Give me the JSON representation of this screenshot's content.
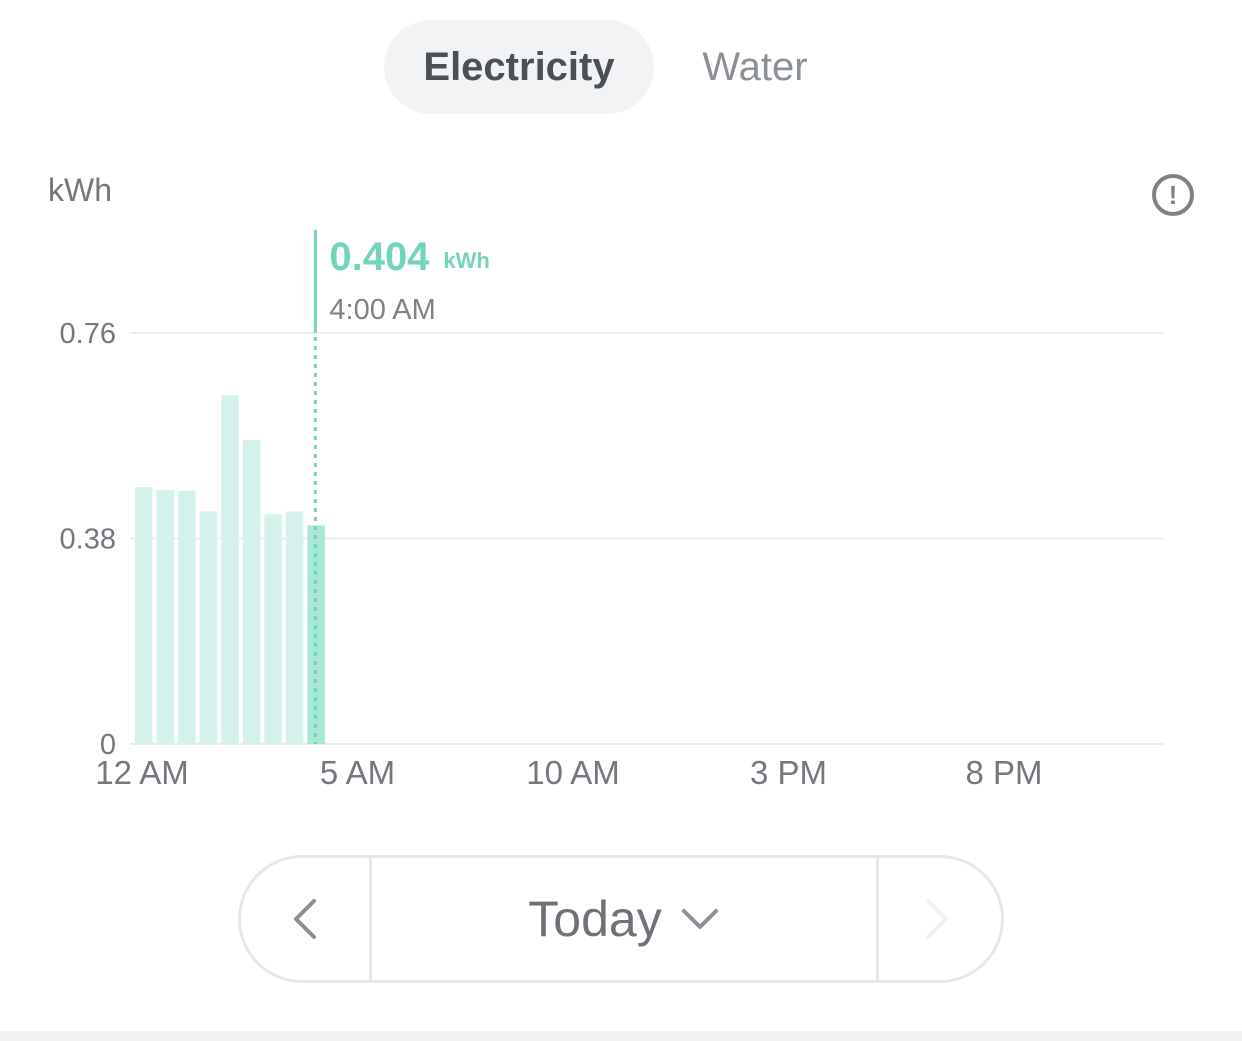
{
  "tabs": [
    {
      "label": "Electricity",
      "active": true
    },
    {
      "label": "Water",
      "active": false
    }
  ],
  "unit_label": "kWh",
  "info_icon": "exclamation-circle-icon",
  "tooltip": {
    "value": "0.404",
    "unit": "kWh",
    "time": "4:00 AM"
  },
  "chart_data": {
    "type": "bar",
    "title": "",
    "xlabel": "",
    "ylabel": "kWh",
    "ylim": [
      0,
      0.76
    ],
    "y_ticks": [
      0,
      0.38,
      0.76
    ],
    "y_tick_labels": [
      "0",
      "0.38",
      "0.76"
    ],
    "x_range_hours": [
      0,
      24
    ],
    "x_tick_hours": [
      0,
      5,
      10,
      15,
      20
    ],
    "x_tick_labels": [
      "12 AM",
      "5 AM",
      "10 AM",
      "3 PM",
      "8 PM"
    ],
    "grid": true,
    "bar_width_hours": 0.5,
    "bar_color": "#d3f2eb",
    "highlight_color": "#a8e6d6",
    "accent_color": "#72d4bc",
    "series": [
      {
        "x_hours": [
          0,
          0.5,
          1,
          1.5,
          2,
          2.5,
          3,
          3.5,
          4
        ],
        "values": [
          0.475,
          0.47,
          0.468,
          0.43,
          0.645,
          0.562,
          0.425,
          0.43,
          0.404
        ]
      }
    ],
    "highlighted_index": 8
  },
  "pager": {
    "period_label": "Today",
    "prev_icon": "chevron-left-icon",
    "next_icon": "chevron-right-icon",
    "dropdown_icon": "chevron-down-icon",
    "next_enabled": false
  }
}
